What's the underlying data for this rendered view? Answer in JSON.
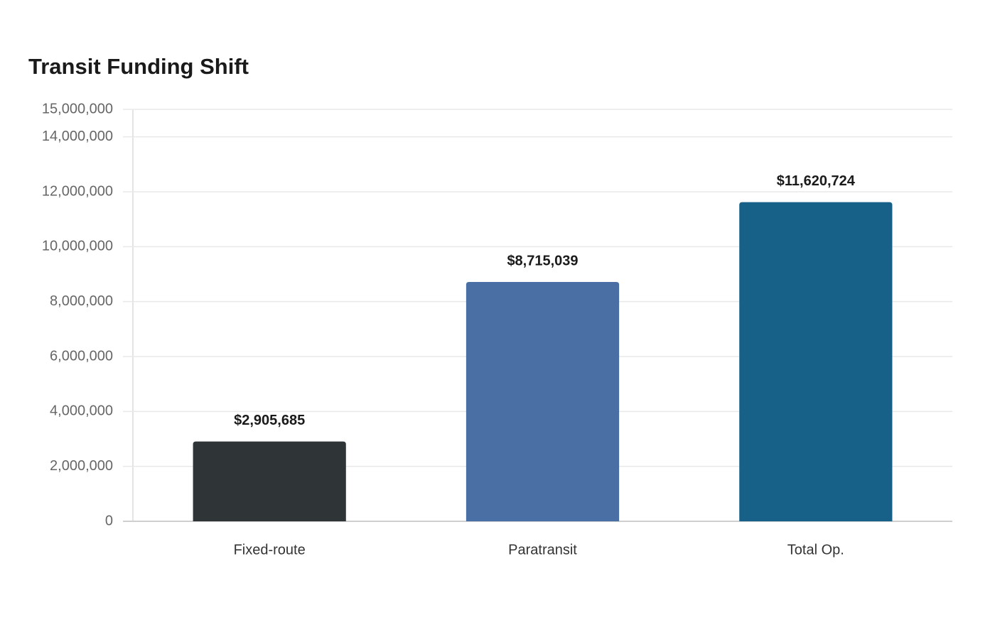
{
  "chart_data": {
    "type": "bar",
    "title": "Transit Funding Shift",
    "categories": [
      "Fixed-route",
      "Paratransit",
      "Total Op."
    ],
    "values": [
      2905685,
      8715039,
      11620724
    ],
    "value_labels": [
      "$2,905,685",
      "$8,715,039",
      "$11,620,724"
    ],
    "colors": [
      "#2f3437",
      "#4a6fa5",
      "#176087"
    ],
    "ylim": [
      0,
      15000000
    ],
    "yticks": [
      0,
      {
        "value": 2000000,
        "label": "2,000,000"
      },
      {
        "value": 4000000,
        "label": "4,000,000"
      },
      {
        "value": 6000000,
        "label": "6,000,000"
      },
      {
        "value": 8000000,
        "label": "8,000,000"
      },
      {
        "value": 10000000,
        "label": "10,000,000"
      },
      {
        "value": 12000000,
        "label": "12,000,000"
      },
      {
        "value": 14000000,
        "label": "14,000,000"
      },
      {
        "value": 15000000,
        "label": "15,000,000"
      }
    ],
    "grid": true
  }
}
